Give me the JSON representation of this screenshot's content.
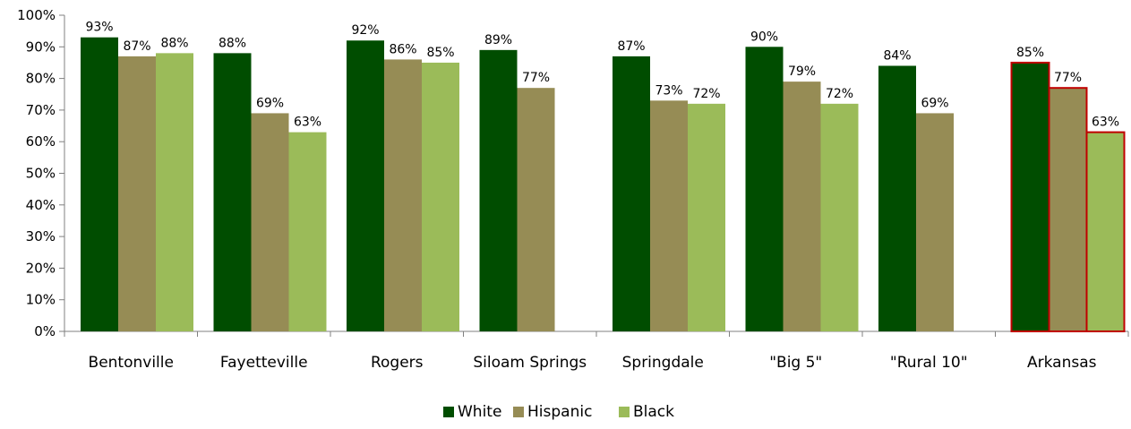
{
  "chart_data": {
    "type": "bar",
    "categories": [
      "Bentonville",
      "Fayetteville",
      "Rogers",
      "Siloam Springs",
      "Springdale",
      "\"Big 5\"",
      "\"Rural 10\"",
      "Arkansas"
    ],
    "series": [
      {
        "name": "White",
        "color": "#004d00",
        "values": [
          93,
          88,
          92,
          89,
          87,
          90,
          84,
          85
        ]
      },
      {
        "name": "Hispanic",
        "color": "#968c55",
        "values": [
          87,
          69,
          86,
          77,
          73,
          79,
          69,
          77
        ]
      },
      {
        "name": "Black",
        "color": "#9bbb59",
        "values": [
          88,
          63,
          85,
          null,
          72,
          72,
          null,
          63
        ]
      }
    ],
    "data_labels": [
      [
        "93%",
        "88%",
        "92%",
        "89%",
        "87%",
        "90%",
        "84%",
        "85%"
      ],
      [
        "87%",
        "69%",
        "86%",
        "77%",
        "73%",
        "79%",
        "69%",
        "77%"
      ],
      [
        "88%",
        "63%",
        "85%",
        "",
        "72%",
        "72%",
        "",
        "63%"
      ]
    ],
    "y_ticks": [
      "0%",
      "10%",
      "20%",
      "30%",
      "40%",
      "50%",
      "60%",
      "70%",
      "80%",
      "90%",
      "100%"
    ],
    "ylim": [
      0,
      100
    ],
    "highlighted_category": "Arkansas",
    "highlight_outline_color": "#c00000",
    "legend": {
      "position": "bottom",
      "entries": [
        "White",
        "Hispanic",
        "Black"
      ]
    },
    "grid": false
  }
}
